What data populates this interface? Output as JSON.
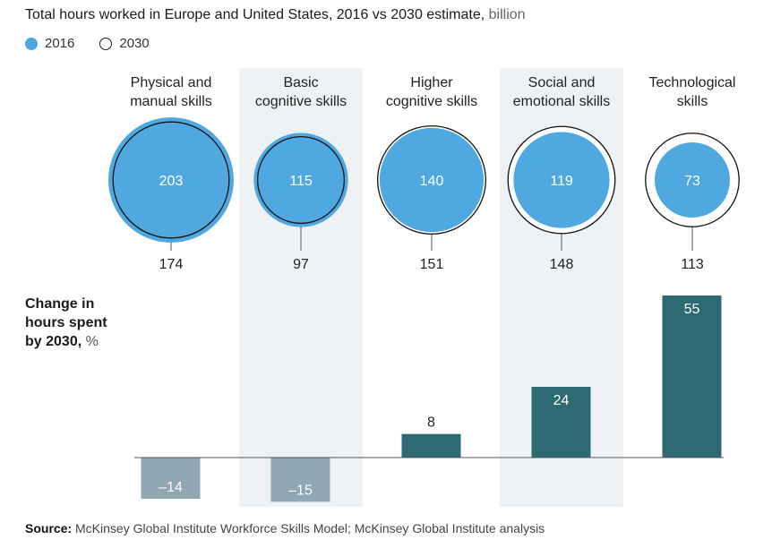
{
  "title": {
    "main": "Total hours worked in Europe and United States, 2016 vs 2030 estimate,",
    "unit": " billion"
  },
  "legend": [
    {
      "label": "2016",
      "style": "filled",
      "color": "#4fa9e0"
    },
    {
      "label": "2030",
      "style": "outline",
      "color": "#222222"
    }
  ],
  "source": {
    "label": "Source:",
    "text": " McKinsey Global Institute Workforce Skills Model; McKinsey Global Institute analysis"
  },
  "colors": {
    "circle_fill": "#4fa9e0",
    "circle_stroke": "#111111",
    "bar_positive": "#2e6a73",
    "bar_negative": "#8fa8b4",
    "band": "#eef2f5",
    "axis": "#555555"
  },
  "chart_data": [
    {
      "type": "bubble",
      "title": "Total hours worked in Europe and United States, 2016 vs 2030 estimate, billion",
      "categories": [
        [
          "Physical and",
          "manual skills"
        ],
        [
          "Basic",
          "cognitive skills"
        ],
        [
          "Higher",
          "cognitive skills"
        ],
        [
          "Social and",
          "emotional skills"
        ],
        [
          "Technological",
          "skills"
        ]
      ],
      "series": [
        {
          "name": "2016",
          "style": "filled",
          "values": [
            203,
            115,
            140,
            119,
            73
          ]
        },
        {
          "name": "2030",
          "style": "outline",
          "values": [
            174,
            97,
            151,
            148,
            113
          ]
        }
      ]
    },
    {
      "type": "bar",
      "ylabel_lines": [
        "Change in",
        "hours spent",
        "by 2030,"
      ],
      "ylabel_unit": " %",
      "categories": [
        "Physical and manual skills",
        "Basic cognitive skills",
        "Higher cognitive skills",
        "Social and emotional skills",
        "Technological skills"
      ],
      "values": [
        -14,
        -15,
        8,
        24,
        55
      ],
      "value_labels": [
        "–14",
        "–15",
        "8",
        "24",
        "55"
      ]
    }
  ]
}
